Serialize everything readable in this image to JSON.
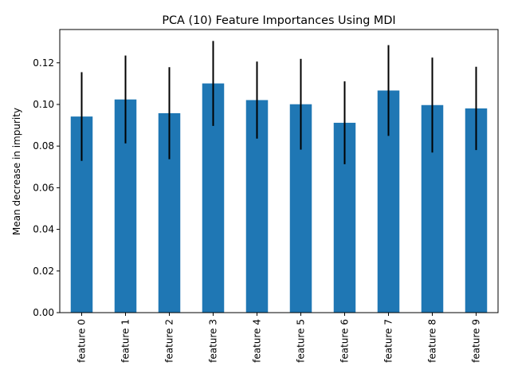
{
  "chart_data": {
    "type": "bar",
    "title": "PCA (10) Feature Importances Using MDI",
    "xlabel": "",
    "ylabel": "Mean decrease in impurity",
    "categories": [
      "feature 0",
      "feature 1",
      "feature 2",
      "feature 3",
      "feature 4",
      "feature 5",
      "feature 6",
      "feature 7",
      "feature 8",
      "feature 9"
    ],
    "values": [
      0.0942,
      0.1024,
      0.0958,
      0.1101,
      0.1021,
      0.1001,
      0.0912,
      0.1067,
      0.0997,
      0.0981
    ],
    "error": [
      0.0213,
      0.0211,
      0.0221,
      0.0204,
      0.0185,
      0.0218,
      0.0199,
      0.0218,
      0.0228,
      0.02
    ],
    "ylim": [
      0.0,
      0.136
    ],
    "yticks": [
      "0.00",
      "0.02",
      "0.04",
      "0.06",
      "0.08",
      "0.10",
      "0.12"
    ],
    "ytick_values": [
      0.0,
      0.02,
      0.04,
      0.06,
      0.08,
      0.1,
      0.12
    ],
    "grid": false,
    "bar_color": "#1f77b4",
    "error_color": "#000000"
  }
}
